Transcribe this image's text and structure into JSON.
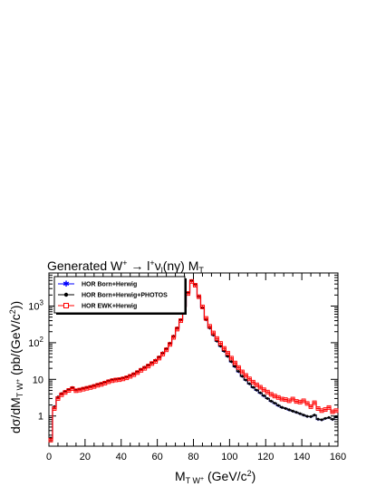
{
  "chart_data": {
    "type": "line",
    "title_text": "Generated W",
    "title_sup": "+",
    "title_rest": " → l",
    "title_sup2": "+",
    "title_nu": "ν",
    "title_sub": "l",
    "title_gamma": "(nγ) M",
    "title_sub2": "T",
    "xlabel": "M",
    "xlabel_sub": "T W",
    "xlabel_sub_sup": "+",
    "xlabel_unit": " (GeV/c",
    "xlabel_unit_sup": "2",
    "xlabel_close": ")",
    "ylabel": "dσ/dM",
    "ylabel_sub": "T W",
    "ylabel_sub_sup": "+",
    "ylabel_unit": " (pb/(GeV/c",
    "ylabel_unit_sup": "2",
    "ylabel_close": "))",
    "xlim": [
      0,
      160
    ],
    "ylim": [
      0.15,
      8000
    ],
    "log_y": true,
    "legend_position": "top-left",
    "x_ticks": [
      "0",
      "20",
      "40",
      "60",
      "80",
      "100",
      "120",
      "140",
      "160"
    ],
    "y_ticks": [
      {
        "base": "1",
        "exp": ""
      },
      {
        "base": "10",
        "exp": ""
      },
      {
        "base": "10",
        "exp": "2"
      },
      {
        "base": "10",
        "exp": "3"
      }
    ],
    "x": [
      1,
      3,
      5,
      7,
      9,
      11,
      13,
      15,
      17,
      19,
      21,
      23,
      25,
      27,
      29,
      31,
      33,
      35,
      37,
      39,
      41,
      43,
      45,
      47,
      49,
      51,
      53,
      55,
      57,
      59,
      61,
      63,
      65,
      67,
      69,
      71,
      73,
      75,
      77,
      79,
      81,
      83,
      85,
      87,
      89,
      91,
      93,
      95,
      97,
      99,
      101,
      103,
      105,
      107,
      109,
      111,
      113,
      115,
      117,
      119,
      121,
      123,
      125,
      127,
      129,
      131,
      133,
      135,
      137,
      139,
      141,
      143,
      145,
      147,
      149,
      151,
      153,
      155,
      157,
      159
    ],
    "series": [
      {
        "name": "HOR Born+Herwig",
        "color": "#0000ff",
        "marker": "star",
        "values": [
          0.25,
          1.8,
          3.3,
          4.0,
          4.6,
          5.2,
          5.9,
          5.0,
          5.3,
          5.6,
          5.9,
          6.3,
          6.7,
          7.2,
          7.6,
          8.2,
          9.0,
          9.6,
          10.0,
          10.2,
          10.7,
          11.5,
          12.6,
          14.0,
          16.0,
          18.5,
          21,
          24,
          28,
          33,
          40,
          52,
          68,
          95,
          150,
          250,
          420,
          1000,
          2300,
          4900,
          3800,
          1800,
          900,
          420,
          250,
          160,
          110,
          80,
          58,
          42,
          30,
          22,
          16,
          12,
          9.5,
          7.5,
          6.0,
          5.0,
          4.2,
          3.5,
          3.0,
          2.5,
          2.2,
          1.9,
          1.7,
          1.6,
          1.45,
          1.35,
          1.25,
          1.15,
          1.05,
          0.97,
          0.95,
          1.05,
          0.8,
          0.78,
          0.85,
          0.9,
          0.8,
          0.95
        ]
      },
      {
        "name": "HOR Born+Herwig+PHOTOS",
        "color": "#000000",
        "marker": "circle",
        "values": [
          0.25,
          1.8,
          3.3,
          4.1,
          4.7,
          5.3,
          6.0,
          5.1,
          5.4,
          5.7,
          6.0,
          6.4,
          6.8,
          7.3,
          7.8,
          8.4,
          9.2,
          9.8,
          10.1,
          10.4,
          10.9,
          11.6,
          12.8,
          14.2,
          16.2,
          18.8,
          21.5,
          24.5,
          28.5,
          33.5,
          41,
          53,
          69,
          97,
          152,
          255,
          425,
          1010,
          2320,
          4950,
          3820,
          1810,
          905,
          425,
          252,
          162,
          111,
          81,
          59,
          42.5,
          30.5,
          22.5,
          16.5,
          12.2,
          9.6,
          7.6,
          6.1,
          5.1,
          4.3,
          3.6,
          3.0,
          2.55,
          2.25,
          1.95,
          1.72,
          1.6,
          1.48,
          1.36,
          1.26,
          1.16,
          1.06,
          0.98,
          0.96,
          1.06,
          0.82,
          0.79,
          0.86,
          0.91,
          0.81,
          0.96
        ]
      },
      {
        "name": "HOR EWK+Herwig",
        "color": "#ff0000",
        "marker": "open-square",
        "values": [
          0.22,
          1.6,
          3.0,
          3.8,
          4.4,
          5.0,
          5.6,
          4.9,
          5.1,
          5.4,
          5.7,
          6.0,
          6.4,
          6.9,
          7.3,
          7.9,
          8.6,
          9.2,
          9.6,
          9.8,
          10.3,
          11.0,
          12.1,
          13.4,
          15.3,
          17.7,
          20,
          23,
          27,
          31,
          38,
          49,
          64,
          90,
          140,
          235,
          400,
          950,
          2200,
          4700,
          3700,
          1800,
          950,
          460,
          280,
          185,
          130,
          96,
          70,
          52,
          38,
          28,
          21,
          16,
          12.8,
          10.3,
          8.4,
          7.1,
          6.1,
          5.2,
          4.5,
          3.9,
          3.5,
          3.2,
          2.9,
          2.8,
          2.6,
          2.9,
          2.5,
          2.4,
          2.6,
          2.2,
          1.8,
          2.3,
          1.6,
          1.4,
          1.5,
          1.7,
          1.3,
          1.4
        ]
      }
    ]
  }
}
